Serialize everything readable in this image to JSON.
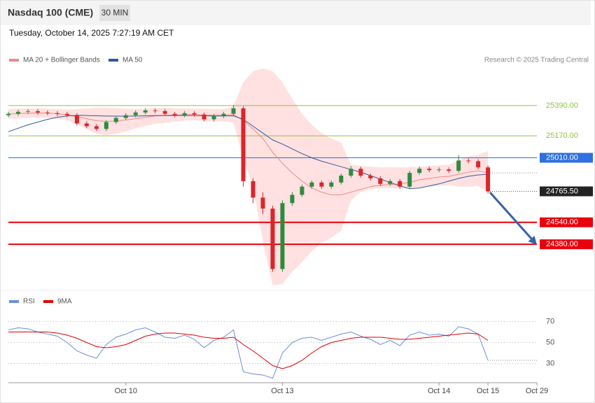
{
  "header": {
    "title": "Nasdaq 100 (CME)",
    "interval": "30 MIN",
    "timestamp": "Tuesday, October 14, 2025 7:27:19 AM CET",
    "copyright": "Research © 2025 Trading Central"
  },
  "chart_data": {
    "type": "candlestick",
    "ylim": [
      24070,
      25675
    ],
    "xlim": [
      0,
      54
    ],
    "xticks": [
      {
        "value": 12,
        "label": "Oct 10"
      },
      {
        "value": 28,
        "label": "Oct 13"
      },
      {
        "value": 44,
        "label": "Oct 14"
      },
      {
        "value": 49,
        "label": "Oct 15"
      },
      {
        "value": 54,
        "label": "Oct 29"
      }
    ],
    "up_color": "#2e8b3e",
    "down_color": "#d9262c",
    "open": [
      25320,
      25330,
      25345,
      25350,
      25340,
      25335,
      25330,
      25320,
      25260,
      25240,
      25220,
      25270,
      25300,
      25320,
      25340,
      25355,
      25350,
      25330,
      25320,
      25335,
      25325,
      25290,
      25315,
      25330,
      25370,
      24840,
      24720,
      24640,
      24200,
      24680,
      24740,
      24800,
      24830,
      24800,
      24830,
      24880,
      24930,
      24880,
      24860,
      24820,
      24840,
      24800,
      24900,
      24930,
      24920,
      24925,
      24915,
      24990,
      24985,
      24940
    ],
    "high": [
      25345,
      25360,
      25365,
      25365,
      25355,
      25350,
      25345,
      25335,
      25275,
      25255,
      25285,
      25315,
      25335,
      25355,
      25370,
      25370,
      25365,
      25345,
      25350,
      25350,
      25340,
      25330,
      25345,
      25395,
      25385,
      24860,
      24760,
      24660,
      24700,
      24760,
      24815,
      24845,
      24845,
      24845,
      24895,
      24950,
      24945,
      24895,
      24875,
      24855,
      24855,
      24915,
      24945,
      24945,
      24940,
      24940,
      25030,
      25005,
      25000,
      24955
    ],
    "low": [
      25305,
      25315,
      25330,
      25325,
      25320,
      25315,
      25305,
      25245,
      25225,
      25205,
      25205,
      25255,
      25285,
      25305,
      25325,
      25335,
      25315,
      25305,
      25305,
      25310,
      25275,
      25275,
      25300,
      25315,
      24800,
      24680,
      24600,
      24180,
      24180,
      24660,
      24725,
      24785,
      24785,
      24785,
      24815,
      24865,
      24865,
      24845,
      24805,
      24805,
      24785,
      24785,
      24885,
      24905,
      24905,
      24900,
      24900,
      24970,
      24925,
      24750
    ],
    "close": [
      25330,
      25345,
      25350,
      25340,
      25335,
      25330,
      25320,
      25260,
      25240,
      25220,
      25270,
      25300,
      25320,
      25340,
      25355,
      25350,
      25330,
      25320,
      25335,
      25325,
      25290,
      25315,
      25330,
      25370,
      24840,
      24720,
      24640,
      24200,
      24680,
      24740,
      24800,
      24830,
      24800,
      24830,
      24880,
      24930,
      24880,
      24860,
      24820,
      24840,
      24800,
      24900,
      24930,
      24920,
      24925,
      24915,
      24990,
      24985,
      24940,
      24765.5
    ],
    "overlays": [
      {
        "name": "MA 20 + Bollinger Bands",
        "color": "#f08a84",
        "band_color": "#ffe1e1",
        "values": [
          25330,
          25332,
          25335,
          25336,
          25335,
          25330,
          25322,
          25310,
          25295,
          25280,
          25275,
          25278,
          25285,
          25295,
          25305,
          25315,
          25320,
          25322,
          25325,
          25326,
          25322,
          25320,
          25320,
          25325,
          25280,
          25220,
          25150,
          25050,
          24970,
          24900,
          24840,
          24790,
          24760,
          24740,
          24740,
          24760,
          24780,
          24800,
          24810,
          24815,
          24820,
          24830,
          24850,
          24860,
          24870,
          24875,
          24890,
          24905,
          24915,
          24900
        ],
        "upper": [
          25365,
          25368,
          25370,
          25370,
          25368,
          25365,
          25360,
          25365,
          25370,
          25375,
          25375,
          25372,
          25368,
          25365,
          25368,
          25372,
          25375,
          25372,
          25370,
          25368,
          25368,
          25365,
          25365,
          25385,
          25560,
          25640,
          25660,
          25640,
          25560,
          25440,
          25330,
          25250,
          25190,
          25150,
          25120,
          24960,
          24950,
          24945,
          24940,
          24940,
          24940,
          24942,
          24945,
          24950,
          24955,
          24960,
          24990,
          25020,
          25030,
          25060
        ],
        "lower": [
          25295,
          25296,
          25300,
          25302,
          25302,
          25295,
          25284,
          25255,
          25220,
          25185,
          25175,
          25184,
          25202,
          25225,
          25242,
          25258,
          25265,
          25272,
          25280,
          25284,
          25276,
          25275,
          25275,
          25265,
          25000,
          24800,
          24400,
          24080,
          24090,
          24180,
          24250,
          24330,
          24390,
          24430,
          24480,
          24700,
          24760,
          24780,
          24790,
          24790,
          24785,
          24790,
          24795,
          24800,
          24805,
          24810,
          24800,
          24800,
          24805,
          24760
        ]
      },
      {
        "name": "MA 50",
        "color": "#34589c",
        "values": [
          25200,
          25225,
          25250,
          25270,
          25290,
          25305,
          25315,
          25320,
          25318,
          25316,
          25314,
          25313,
          25313,
          25314,
          25316,
          25318,
          25318,
          25318,
          25318,
          25318,
          25316,
          25315,
          25315,
          25316,
          25290,
          25240,
          25190,
          25140,
          25110,
          25075,
          25040,
          25010,
          24985,
          24965,
          24945,
          24925,
          24905,
          24880,
          24855,
          24830,
          24805,
          24785,
          24790,
          24805,
          24820,
          24840,
          24860,
          24875,
          24885,
          24890
        ]
      }
    ],
    "levels": [
      {
        "value": 25390,
        "label": "25390.00",
        "color": "#8cc63f",
        "label_box": false,
        "width": 1
      },
      {
        "value": 25170,
        "label": "25170.00",
        "color": "#8cc63f",
        "label_box": false,
        "width": 1
      },
      {
        "value": 25010,
        "label": "25010.00",
        "color": "#2f6fe0",
        "label_box": true,
        "width": 1
      },
      {
        "value": 24540,
        "label": "24540.00",
        "color": "#e8000b",
        "label_box": true,
        "width": 2
      },
      {
        "value": 24380,
        "label": "24380.00",
        "color": "#e8000b",
        "label_box": true,
        "width": 2
      }
    ],
    "last_price": {
      "value": 24765.5,
      "label": "24765.50",
      "color": "#222222"
    },
    "rsi": {
      "ylim": [
        13,
        83
      ],
      "yticks": [
        70,
        50,
        30
      ],
      "series": [
        {
          "name": "RSI",
          "color": "#6a8ee0",
          "values": [
            62,
            64,
            63,
            60,
            58,
            56,
            50,
            42,
            38,
            35,
            48,
            55,
            58,
            62,
            64,
            60,
            55,
            54,
            57,
            53,
            45,
            52,
            55,
            62,
            22,
            20,
            19,
            16,
            40,
            50,
            54,
            55,
            52,
            55,
            58,
            60,
            56,
            53,
            48,
            52,
            47,
            57,
            60,
            57,
            58,
            56,
            65,
            63,
            58,
            33
          ]
        },
        {
          "name": "9MA",
          "color": "#e00000",
          "values": [
            60,
            60,
            60,
            60,
            60,
            59,
            57,
            54,
            50,
            46,
            45,
            46,
            48,
            52,
            56,
            58,
            59,
            59,
            58,
            57,
            55,
            54,
            54,
            55,
            48,
            42,
            35,
            28,
            25,
            28,
            33,
            40,
            46,
            50,
            52,
            54,
            55,
            55,
            55,
            54,
            53,
            53,
            54,
            55,
            56,
            57,
            58,
            59,
            58,
            52
          ]
        }
      ]
    }
  }
}
